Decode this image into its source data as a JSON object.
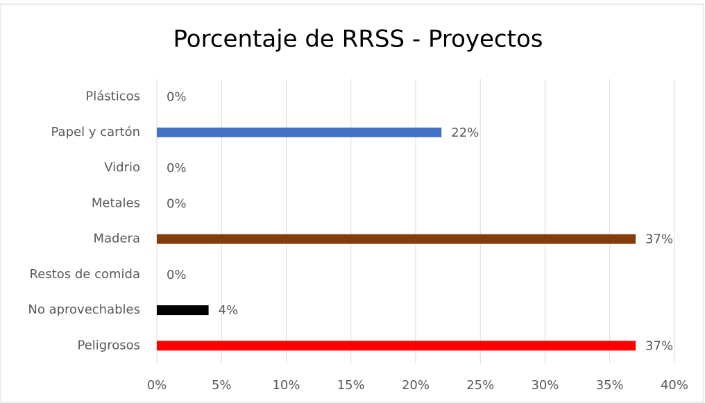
{
  "chart_data": {
    "type": "bar",
    "orientation": "horizontal",
    "title": "Porcentaje de RRSS - Proyectos",
    "categories": [
      "Plásticos",
      "Papel y cartón",
      "Vidrio",
      "Metales",
      "Madera",
      "Restos de comida",
      "No aprovechables",
      "Peligrosos"
    ],
    "values": [
      0,
      22,
      0,
      0,
      37,
      0,
      4,
      37
    ],
    "value_labels": [
      "0%",
      "22%",
      "0%",
      "0%",
      "37%",
      "0%",
      "4%",
      "37%"
    ],
    "colors": [
      "#4472c4",
      "#4472c4",
      "#4472c4",
      "#4472c4",
      "#843c0c",
      "#4472c4",
      "#000000",
      "#ff0000"
    ],
    "xlim": [
      0,
      40
    ],
    "xticks": [
      {
        "value": 0,
        "label": "0%"
      },
      {
        "value": 5,
        "label": "5%"
      },
      {
        "value": 10,
        "label": "10%"
      },
      {
        "value": 15,
        "label": "15%"
      },
      {
        "value": 20,
        "label": "20%"
      },
      {
        "value": 25,
        "label": "25%"
      },
      {
        "value": 30,
        "label": "30%"
      },
      {
        "value": 35,
        "label": "35%"
      },
      {
        "value": 40,
        "label": "40%"
      }
    ],
    "grid": true
  }
}
